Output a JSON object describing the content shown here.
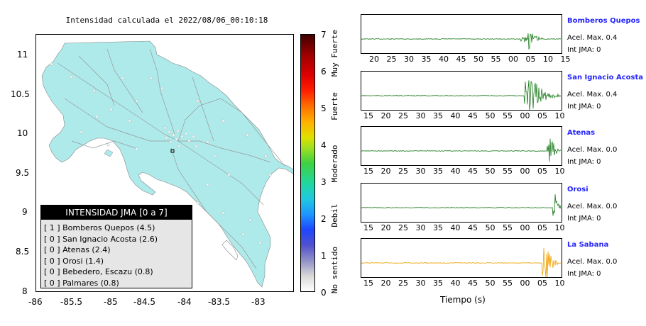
{
  "map": {
    "title": "Intensidad calculada el 2022/08/06_00:10:18",
    "y_ticks": [
      "11",
      "10.5",
      "10",
      "9.5",
      "9",
      "8.5",
      "8"
    ],
    "x_ticks": [
      "-86",
      "-85.5",
      "-85",
      "-84.5",
      "-84",
      "-83.5",
      "-83"
    ],
    "land_color": "#aeeaea"
  },
  "legend": {
    "title": "INTENSIDAD JMA [0 a 7]",
    "rows": [
      "[ 1 ]  Bomberos Quepos (4.5)",
      "[ 0 ]  San Ignacio Acosta (2.6)",
      "[ 0 ]  Atenas (2.4)",
      "[ 0 ]  Orosi (1.4)",
      "[ 0 ]  Bebedero, Escazu (0.8)",
      "[ 0 ]  Palmares (0.8)"
    ]
  },
  "colorbar": {
    "numbers": [
      "7",
      "6",
      "5",
      "4",
      "3",
      "2",
      "1",
      "0"
    ],
    "words": [
      "Muy Fuerte",
      "Fuerte",
      "Moderado",
      "Debil",
      "No sentido"
    ]
  },
  "stations": [
    {
      "name": "Bomberos Quepos",
      "acel": "Acel. Max. 0.4",
      "int": "Int JMA: 0",
      "color": "#1a7a1a",
      "ticks": [
        "20",
        "25",
        "30",
        "35",
        "40",
        "45",
        "50",
        "55",
        "00",
        "05",
        "10",
        "15"
      ]
    },
    {
      "name": "San Ignacio Acosta",
      "acel": "Acel. Max. 0.4",
      "int": "Int JMA: 0",
      "color": "#1a7a1a",
      "ticks": [
        "15",
        "20",
        "25",
        "30",
        "35",
        "40",
        "45",
        "50",
        "55",
        "00",
        "05",
        "10"
      ]
    },
    {
      "name": "Atenas",
      "acel": "Acel. Max. 0.0",
      "int": "Int JMA: 0",
      "color": "#1a7a1a",
      "ticks": [
        "15",
        "20",
        "25",
        "30",
        "35",
        "40",
        "45",
        "50",
        "55",
        "00",
        "05",
        "10"
      ]
    },
    {
      "name": "Orosi",
      "acel": "Acel. Max. 0.0",
      "int": "Int JMA: 0",
      "color": "#1a7a1a",
      "ticks": [
        "15",
        "20",
        "25",
        "30",
        "35",
        "40",
        "45",
        "50",
        "55",
        "00",
        "05",
        "10"
      ]
    },
    {
      "name": "La Sabana",
      "acel": "Acel. Max. 0.0",
      "int": "Int JMA: 0",
      "color": "#f0a000",
      "ticks": [
        "15",
        "20",
        "25",
        "30",
        "35",
        "40",
        "45",
        "50",
        "55",
        "00",
        "05",
        "10"
      ]
    }
  ],
  "xlabel": "Tiempo (s)"
}
